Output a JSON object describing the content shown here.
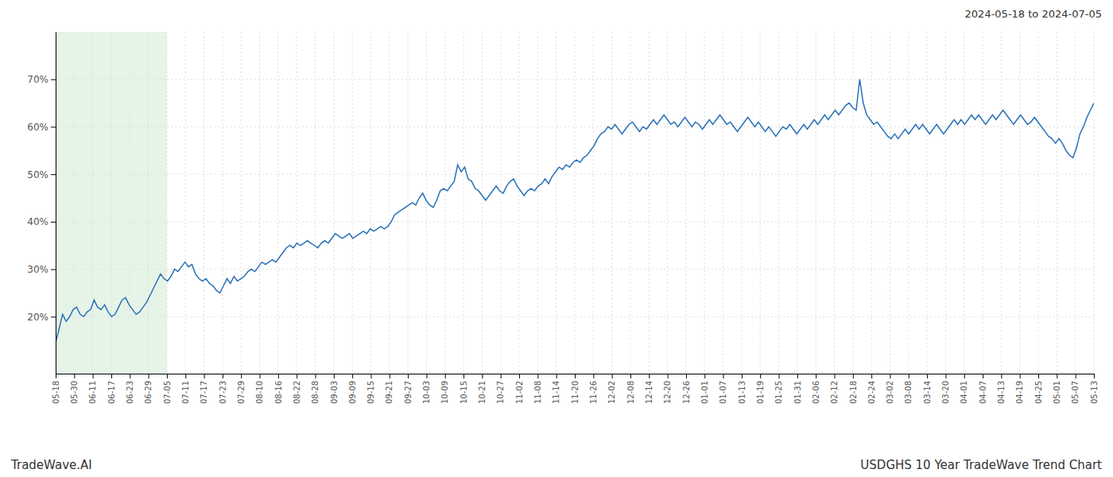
{
  "chart_data": {
    "type": "line",
    "title": "USDGHS 10 Year TradeWave Trend Chart",
    "subtitle": "2024-05-18 to 2024-07-05",
    "annotations": [
      "TradeWave.AI"
    ],
    "color": "#2970B8",
    "grid": true,
    "highlight": {
      "from": 0,
      "to": 6,
      "color": "#c8e6c9"
    },
    "xlim": [
      0,
      56
    ],
    "xticks": [
      {
        "value": 0,
        "label": "05-18"
      },
      {
        "value": 1,
        "label": "05-30"
      },
      {
        "value": 2,
        "label": "06-11"
      },
      {
        "value": 3,
        "label": "06-17"
      },
      {
        "value": 4,
        "label": "06-23"
      },
      {
        "value": 5,
        "label": "06-29"
      },
      {
        "value": 6,
        "label": "07-05"
      },
      {
        "value": 7,
        "label": "07-11"
      },
      {
        "value": 8,
        "label": "07-17"
      },
      {
        "value": 9,
        "label": "07-23"
      },
      {
        "value": 10,
        "label": "07-29"
      },
      {
        "value": 11,
        "label": "08-10"
      },
      {
        "value": 12,
        "label": "08-16"
      },
      {
        "value": 13,
        "label": "08-22"
      },
      {
        "value": 14,
        "label": "08-28"
      },
      {
        "value": 15,
        "label": "09-03"
      },
      {
        "value": 16,
        "label": "09-09"
      },
      {
        "value": 17,
        "label": "09-15"
      },
      {
        "value": 18,
        "label": "09-21"
      },
      {
        "value": 19,
        "label": "09-27"
      },
      {
        "value": 20,
        "label": "10-03"
      },
      {
        "value": 21,
        "label": "10-09"
      },
      {
        "value": 22,
        "label": "10-15"
      },
      {
        "value": 23,
        "label": "10-21"
      },
      {
        "value": 24,
        "label": "10-27"
      },
      {
        "value": 25,
        "label": "11-02"
      },
      {
        "value": 26,
        "label": "11-08"
      },
      {
        "value": 27,
        "label": "11-14"
      },
      {
        "value": 28,
        "label": "11-20"
      },
      {
        "value": 29,
        "label": "11-26"
      },
      {
        "value": 30,
        "label": "12-02"
      },
      {
        "value": 31,
        "label": "12-08"
      },
      {
        "value": 32,
        "label": "12-14"
      },
      {
        "value": 33,
        "label": "12-20"
      },
      {
        "value": 34,
        "label": "12-26"
      },
      {
        "value": 35,
        "label": "01-01"
      },
      {
        "value": 36,
        "label": "01-07"
      },
      {
        "value": 37,
        "label": "01-13"
      },
      {
        "value": 38,
        "label": "01-19"
      },
      {
        "value": 39,
        "label": "01-25"
      },
      {
        "value": 40,
        "label": "01-31"
      },
      {
        "value": 41,
        "label": "02-06"
      },
      {
        "value": 42,
        "label": "02-12"
      },
      {
        "value": 43,
        "label": "02-18"
      },
      {
        "value": 44,
        "label": "02-24"
      },
      {
        "value": 45,
        "label": "03-02"
      },
      {
        "value": 46,
        "label": "03-08"
      },
      {
        "value": 47,
        "label": "03-14"
      },
      {
        "value": 48,
        "label": "03-20"
      },
      {
        "value": 49,
        "label": "04-01"
      },
      {
        "value": 50,
        "label": "04-07"
      },
      {
        "value": 51,
        "label": "04-13"
      },
      {
        "value": 52,
        "label": "04-19"
      },
      {
        "value": 53,
        "label": "04-25"
      },
      {
        "value": 54,
        "label": "05-01"
      },
      {
        "value": 55,
        "label": "05-07"
      },
      {
        "value": 56,
        "label": "05-13"
      }
    ],
    "ylim": [
      8,
      80
    ],
    "yticks": [
      {
        "value": 20,
        "label": "20%"
      },
      {
        "value": 30,
        "label": "30%"
      },
      {
        "value": 40,
        "label": "40%"
      },
      {
        "value": 50,
        "label": "50%"
      },
      {
        "value": 60,
        "label": "60%"
      },
      {
        "value": 70,
        "label": "70%"
      }
    ],
    "values": [
      14.5,
      17.5,
      20.5,
      19.0,
      20.0,
      21.5,
      22.0,
      20.5,
      20.0,
      21.0,
      21.5,
      23.5,
      22.0,
      21.5,
      22.5,
      21.0,
      20.0,
      20.5,
      22.0,
      23.5,
      24.0,
      22.5,
      21.5,
      20.5,
      21.0,
      22.0,
      23.0,
      24.5,
      26.0,
      27.5,
      29.0,
      28.0,
      27.5,
      28.5,
      30.0,
      29.5,
      30.5,
      31.5,
      30.5,
      31.0,
      29.0,
      28.0,
      27.5,
      28.0,
      27.0,
      26.5,
      25.5,
      25.0,
      26.5,
      28.0,
      27.0,
      28.5,
      27.5,
      28.0,
      28.5,
      29.5,
      30.0,
      29.5,
      30.5,
      31.5,
      31.0,
      31.5,
      32.0,
      31.5,
      32.5,
      33.5,
      34.5,
      35.0,
      34.5,
      35.5,
      35.0,
      35.5,
      36.0,
      35.5,
      35.0,
      34.5,
      35.5,
      36.0,
      35.5,
      36.5,
      37.5,
      37.0,
      36.5,
      37.0,
      37.5,
      36.5,
      37.0,
      37.5,
      38.0,
      37.5,
      38.5,
      38.0,
      38.5,
      39.0,
      38.5,
      39.0,
      40.0,
      41.5,
      42.0,
      42.5,
      43.0,
      43.5,
      44.0,
      43.5,
      45.0,
      46.0,
      44.5,
      43.5,
      43.0,
      44.5,
      46.5,
      47.0,
      46.5,
      47.5,
      48.5,
      52.0,
      50.5,
      51.5,
      49.0,
      48.5,
      47.0,
      46.5,
      45.5,
      44.5,
      45.5,
      46.5,
      47.5,
      46.5,
      46.0,
      47.5,
      48.5,
      49.0,
      47.5,
      46.5,
      45.5,
      46.5,
      47.0,
      46.5,
      47.5,
      48.0,
      49.0,
      48.0,
      49.5,
      50.5,
      51.5,
      51.0,
      52.0,
      51.5,
      52.5,
      53.0,
      52.5,
      53.5,
      54.0,
      55.0,
      56.0,
      57.5,
      58.5,
      59.0,
      60.0,
      59.5,
      60.5,
      59.5,
      58.5,
      59.5,
      60.5,
      61.0,
      60.0,
      59.0,
      60.0,
      59.5,
      60.5,
      61.5,
      60.5,
      61.5,
      62.5,
      61.5,
      60.5,
      61.0,
      60.0,
      61.0,
      62.0,
      61.0,
      60.0,
      61.0,
      60.5,
      59.5,
      60.5,
      61.5,
      60.5,
      61.5,
      62.5,
      61.5,
      60.5,
      61.0,
      60.0,
      59.0,
      60.0,
      61.0,
      62.0,
      61.0,
      60.0,
      61.0,
      60.0,
      59.0,
      60.0,
      59.0,
      58.0,
      59.0,
      60.0,
      59.5,
      60.5,
      59.5,
      58.5,
      59.5,
      60.5,
      59.5,
      60.5,
      61.5,
      60.5,
      61.5,
      62.5,
      61.5,
      62.5,
      63.5,
      62.5,
      63.5,
      64.5,
      65.0,
      64.0,
      63.5,
      70.0,
      65.0,
      62.5,
      61.5,
      60.5,
      61.0,
      60.0,
      59.0,
      58.0,
      57.5,
      58.5,
      57.5,
      58.5,
      59.5,
      58.5,
      59.5,
      60.5,
      59.5,
      60.5,
      59.5,
      58.5,
      59.5,
      60.5,
      59.5,
      58.5,
      59.5,
      60.5,
      61.5,
      60.5,
      61.5,
      60.5,
      61.5,
      62.5,
      61.5,
      62.5,
      61.5,
      60.5,
      61.5,
      62.5,
      61.5,
      62.5,
      63.5,
      62.5,
      61.5,
      60.5,
      61.5,
      62.5,
      61.5,
      60.5,
      61.0,
      62.0,
      61.0,
      60.0,
      59.0,
      58.0,
      57.5,
      56.5,
      57.5,
      56.5,
      55.0,
      54.0,
      53.5,
      55.5,
      58.5,
      60.0,
      62.0,
      63.5,
      65.0
    ]
  }
}
